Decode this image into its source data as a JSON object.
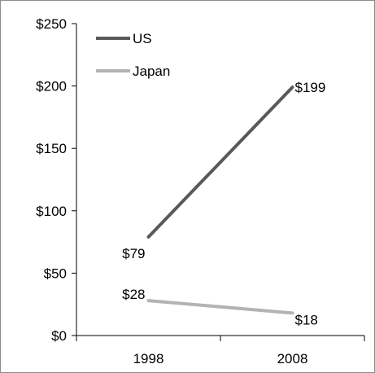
{
  "chart_data": {
    "type": "line",
    "categories": [
      "1998",
      "2008"
    ],
    "series": [
      {
        "name": "US",
        "values": [
          79,
          199
        ],
        "color": "#595959",
        "labels": [
          "$79",
          "$199"
        ]
      },
      {
        "name": "Japan",
        "values": [
          28,
          18
        ],
        "color": "#b3b3b3",
        "labels": [
          "$28",
          "$18"
        ]
      }
    ],
    "ylim": [
      0,
      250
    ],
    "y_ticks": [
      {
        "value": 0,
        "label": "$0"
      },
      {
        "value": 50,
        "label": "$50"
      },
      {
        "value": 100,
        "label": "$100"
      },
      {
        "value": 150,
        "label": "$150"
      },
      {
        "value": 200,
        "label": "$200"
      },
      {
        "value": 250,
        "label": "$250"
      }
    ],
    "legend_position": "top-left",
    "grid": false,
    "title": "",
    "xlabel": "",
    "ylabel": ""
  }
}
